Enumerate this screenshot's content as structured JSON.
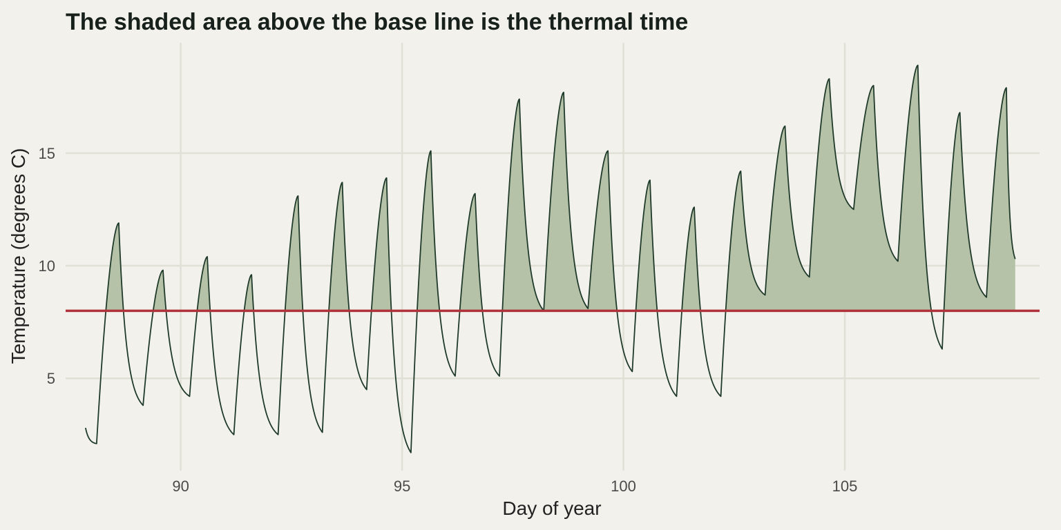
{
  "chart_data": {
    "type": "area",
    "title": "The shaded area above the base line is the thermal time",
    "xlabel": "Day of year",
    "ylabel": "Temperature (degrees C)",
    "xlim": [
      87.4,
      109.4
    ],
    "ylim": [
      0.9,
      19.9
    ],
    "xticks": [
      90,
      95,
      100,
      105
    ],
    "yticks": [
      5,
      10,
      15
    ],
    "base_temperature": 8,
    "grid": true,
    "legend": "none",
    "colors": {
      "background": "#f2f1eb",
      "grid": "#e0e0d6",
      "line": "#1f3a2a",
      "fill": "#b5c2a8",
      "base_line": "#b0323a"
    },
    "series": [
      {
        "x": [
          87.85,
          88.1,
          88.6,
          89.15,
          89.6,
          90.2,
          90.6,
          91.2,
          91.6,
          92.2,
          92.65,
          93.2,
          93.65,
          94.2,
          94.65,
          95.2,
          95.65,
          96.2,
          96.65,
          97.2,
          97.65,
          98.2,
          98.65,
          99.2,
          99.65,
          100.2,
          100.6,
          101.2,
          101.6,
          102.2,
          102.65,
          103.2,
          103.65,
          104.2,
          104.65,
          105.2,
          105.65,
          106.2,
          106.65,
          107.2,
          107.6,
          108.2,
          108.65,
          108.85
        ],
        "temp": [
          2.8,
          2.1,
          11.9,
          3.8,
          9.8,
          4.2,
          10.4,
          2.5,
          9.6,
          2.5,
          13.1,
          2.6,
          13.7,
          4.5,
          13.9,
          1.7,
          15.1,
          5.1,
          13.2,
          5.1,
          17.4,
          8.0,
          17.7,
          8.1,
          15.1,
          5.3,
          13.8,
          4.2,
          12.6,
          4.2,
          14.2,
          8.7,
          16.2,
          9.5,
          18.3,
          12.5,
          18.0,
          10.2,
          18.9,
          6.3,
          16.8,
          8.6,
          17.9,
          10.3
        ]
      }
    ]
  }
}
